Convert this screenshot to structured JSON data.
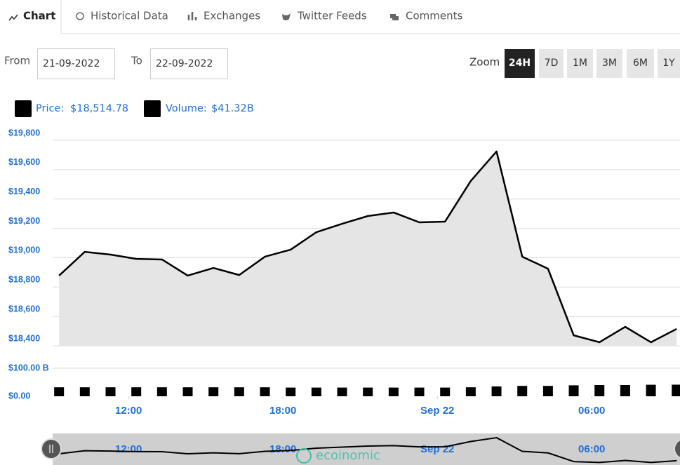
{
  "tabs": [
    "Chart",
    "Historical Data",
    "Exchanges",
    "Twitter Feeds",
    "Comments"
  ],
  "filters": {
    "from_label": "From",
    "from": "21-09-2022",
    "to_label": "To",
    "to": "22-09-2022",
    "zoom_label": "Zoom",
    "zoom": [
      "24H",
      "7D",
      "1M",
      "3M",
      "6M",
      "1Y"
    ],
    "zoom_active": "24H"
  },
  "watermark": "ecoinomic",
  "chart_data": [
    {
      "type": "area",
      "x": [
        9.3,
        10.3,
        11.3,
        12.3,
        13.3,
        14.3,
        15.3,
        16.3,
        17.3,
        18.3,
        19.3,
        20.3,
        21.3,
        22.3,
        23.3,
        24.3,
        25.3,
        26.3,
        27.3,
        28.3,
        29.3,
        30.3,
        31.3,
        32.3,
        33.3
      ],
      "series": [
        {
          "name": "Price:",
          "legend_value": "$18,514.78",
          "color": "#000000",
          "fill": "#e5e5e5",
          "values": [
            18878,
            19040,
            19021,
            18992,
            18988,
            18878,
            18930,
            18882,
            19007,
            19055,
            19174,
            19231,
            19284,
            19308,
            19241,
            19246,
            19523,
            19724,
            19007,
            18925,
            18471,
            18424,
            18529,
            18424,
            18515
          ]
        }
      ],
      "xlim": [
        9.05,
        33.43
      ],
      "ylim": [
        18400,
        19800
      ],
      "yticks": [
        {
          "value": 18400,
          "label": "$18,400"
        },
        {
          "value": 18600,
          "label": "$18,600"
        },
        {
          "value": 18800,
          "label": "$18,800"
        },
        {
          "value": 19000,
          "label": "$19,000"
        },
        {
          "value": 19200,
          "label": "$19,200"
        },
        {
          "value": 19400,
          "label": "$19,400"
        },
        {
          "value": 19600,
          "label": "$19,600"
        },
        {
          "value": 19800,
          "label": "$19,800"
        }
      ],
      "grid": true
    },
    {
      "type": "bar",
      "x": [
        9.3,
        10.3,
        11.3,
        12.3,
        13.3,
        14.3,
        15.3,
        16.3,
        17.3,
        18.3,
        19.3,
        20.3,
        21.3,
        22.3,
        23.3,
        24.3,
        25.3,
        26.3,
        27.3,
        28.3,
        29.3,
        30.3,
        31.3,
        32.3,
        33.3
      ],
      "series": [
        {
          "name": "Volume:",
          "legend_value": "$41.32B",
          "color": "#000000",
          "values": [
            32,
            32,
            32,
            32,
            32,
            32,
            32,
            32,
            32,
            31,
            31,
            31,
            31,
            31,
            31,
            31,
            32,
            35,
            37,
            37,
            39,
            40,
            40,
            41,
            41.32
          ]
        }
      ],
      "xlim": [
        9.05,
        33.43
      ],
      "ylim": [
        0,
        100
      ],
      "yticks": [
        {
          "value": 0,
          "label": "$0.00"
        },
        {
          "value": 100,
          "label": "$100.00 B"
        }
      ],
      "xticks": [
        {
          "value": 12,
          "label": "12:00"
        },
        {
          "value": 18,
          "label": "18:00"
        },
        {
          "value": 24,
          "label": "Sep 22"
        },
        {
          "value": 30,
          "label": "06:00"
        }
      ],
      "grid": true
    }
  ]
}
